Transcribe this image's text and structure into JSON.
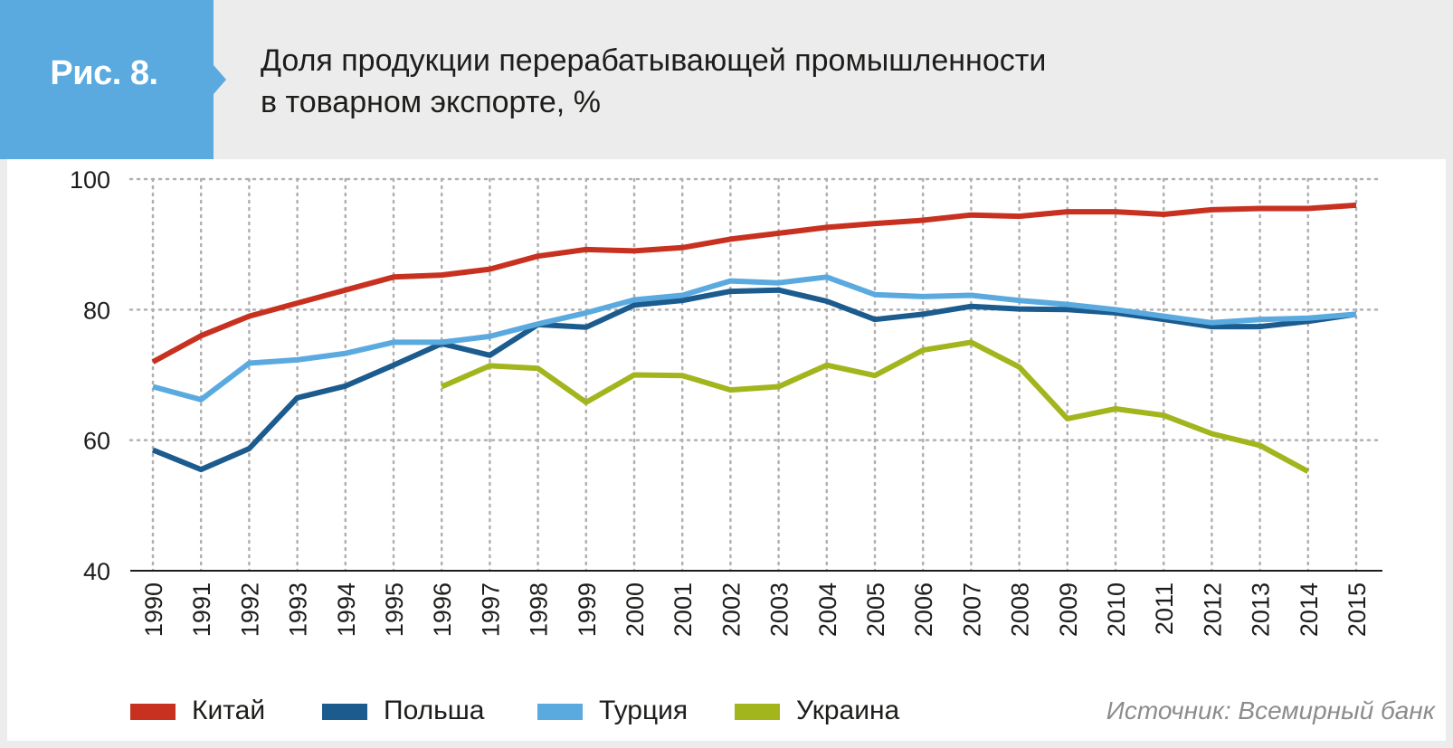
{
  "header": {
    "figure_label": "Рис. 8.",
    "title_line1": "Доля продукции перерабатывающей промышленности",
    "title_line2": "в товарном экспорте, %"
  },
  "colors": {
    "badge": "#5aaadf",
    "china": "#c8311f",
    "poland": "#1b5b8e",
    "turkey": "#5aaae0",
    "ukraine": "#a2b51d",
    "grid": "#b0b0b0",
    "text": "#1d1d1b"
  },
  "source": "Источник: Всемирный банк",
  "chart_data": {
    "type": "line",
    "x": [
      "1990",
      "1991",
      "1992",
      "1993",
      "1994",
      "1995",
      "1996",
      "1997",
      "1998",
      "1999",
      "2000",
      "2001",
      "2002",
      "2003",
      "2004",
      "2005",
      "2006",
      "2007",
      "2008",
      "2009",
      "2010",
      "2011",
      "2012",
      "2013",
      "2014",
      "2015"
    ],
    "ylim": [
      40,
      100
    ],
    "yticks": [
      "40",
      "60",
      "80",
      "100"
    ],
    "grid": true,
    "legend_position": "bottom",
    "series": [
      {
        "name": "Китай",
        "key": "china",
        "values": [
          72,
          76,
          79,
          81,
          83,
          85,
          85.3,
          86.2,
          88.2,
          89.2,
          89,
          89.5,
          90.8,
          91.7,
          92.6,
          93.2,
          93.7,
          94.5,
          94.3,
          95,
          95,
          94.6,
          95.3,
          95.5,
          95.5,
          96
        ]
      },
      {
        "name": "Польша",
        "key": "poland",
        "values": [
          58.5,
          55.5,
          58.7,
          66.5,
          68.3,
          71.5,
          74.8,
          73,
          77.7,
          77.3,
          80.7,
          81.4,
          82.8,
          83,
          81.3,
          78.5,
          79.3,
          80.5,
          80.1,
          80,
          79.5,
          78.5,
          77.4,
          77.4,
          78.2,
          79.3
        ]
      },
      {
        "name": "Турция",
        "key": "turkey",
        "values": [
          68.2,
          66.2,
          71.8,
          72.3,
          73.3,
          75,
          75,
          75.9,
          77.8,
          79.5,
          81.5,
          82.2,
          84.4,
          84.1,
          85,
          82.3,
          82,
          82.2,
          81.4,
          80.8,
          80,
          79,
          78,
          78.5,
          78.7,
          79.3
        ]
      },
      {
        "name": "Украина",
        "key": "ukraine",
        "values": [
          null,
          null,
          null,
          null,
          null,
          null,
          68.2,
          71.4,
          71,
          65.8,
          70,
          69.9,
          67.7,
          68.2,
          71.5,
          69.9,
          73.8,
          75,
          71.2,
          63.3,
          64.8,
          63.8,
          61,
          59.2,
          55.2,
          null
        ]
      }
    ]
  }
}
